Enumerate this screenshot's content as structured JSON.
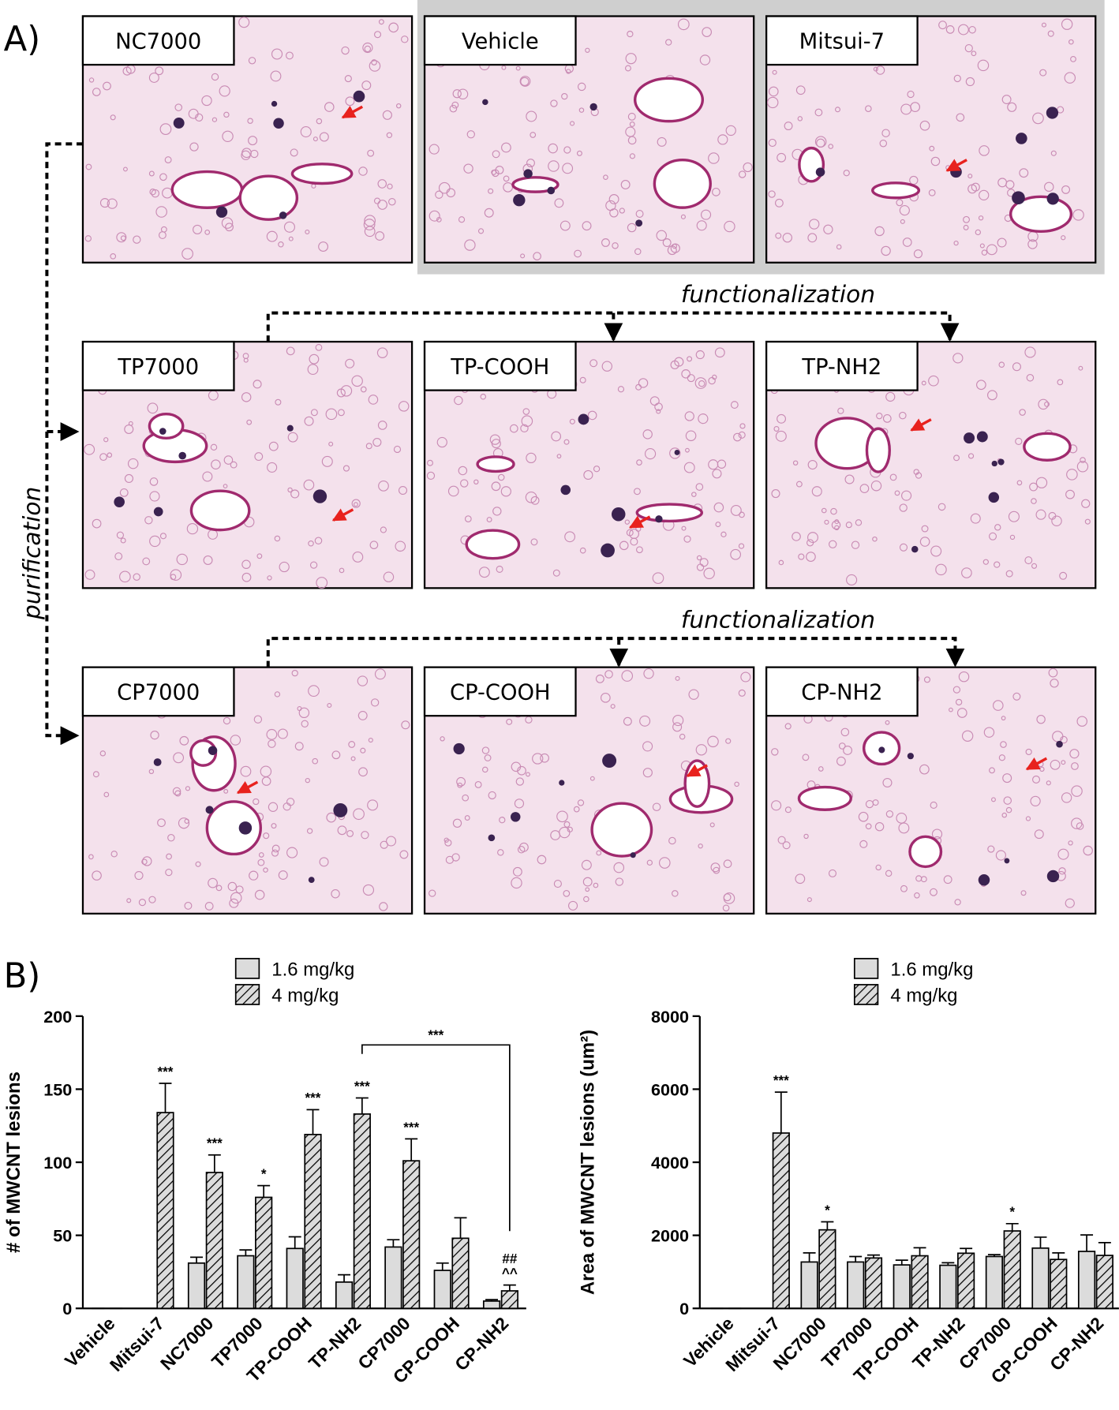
{
  "panel_a": {
    "label": "A)",
    "images": [
      "NC7000",
      "Vehicle",
      "Mitsui-7",
      "TP7000",
      "TP-COOH",
      "TP-NH2",
      "CP7000",
      "CP-COOH",
      "CP-NH2"
    ],
    "functionalization_labels": [
      "functionalization",
      "functionalization"
    ],
    "purification_label": "purification"
  },
  "panel_b_label": "B)",
  "chart_data": [
    {
      "type": "bar",
      "ylabel": "# of MWCNT lesions",
      "categories": [
        "Vehicle",
        "Mitsui-7",
        "NC7000",
        "TP7000",
        "TP-COOH",
        "TP-NH2",
        "CP7000",
        "CP-COOH",
        "CP-NH2"
      ],
      "series": [
        {
          "name": "1.6 mg/kg",
          "color": "#dcdcdc",
          "hatch": false,
          "values": [
            0,
            null,
            31,
            36,
            41,
            18,
            42,
            26,
            5
          ],
          "errors": [
            0,
            null,
            4,
            4,
            8,
            5,
            5,
            5,
            1
          ]
        },
        {
          "name": "4 mg/kg",
          "color": "#dcdcdc",
          "hatch": true,
          "values": [
            0,
            134,
            93,
            76,
            119,
            133,
            101,
            48,
            12
          ],
          "errors": [
            0,
            20,
            12,
            8,
            17,
            11,
            15,
            14,
            4
          ]
        }
      ],
      "ylim": [
        0,
        200
      ],
      "yticks": [
        0,
        50,
        100,
        150,
        200
      ],
      "annotations": [
        null,
        [
          "***"
        ],
        [
          "***"
        ],
        [
          "*"
        ],
        [
          "***"
        ],
        [
          "***"
        ],
        [
          "***"
        ],
        null,
        [
          "^^",
          "##"
        ]
      ],
      "bracket": {
        "label": "***",
        "from": 5,
        "to": 8
      }
    },
    {
      "type": "bar",
      "ylabel": "Area of MWCNT lesions (um²)",
      "categories": [
        "Vehicle",
        "Mitsui-7",
        "NC7000",
        "TP7000",
        "TP-COOH",
        "TP-NH2",
        "CP7000",
        "CP-COOH",
        "CP-NH2"
      ],
      "series": [
        {
          "name": "1.6 mg/kg",
          "color": "#dcdcdc",
          "hatch": false,
          "values": [
            0,
            null,
            1270,
            1270,
            1190,
            1180,
            1420,
            1650,
            1560
          ],
          "errors": [
            0,
            null,
            250,
            150,
            130,
            70,
            50,
            300,
            450
          ]
        },
        {
          "name": "4 mg/kg",
          "color": "#dcdcdc",
          "hatch": true,
          "values": [
            0,
            4800,
            2150,
            1380,
            1440,
            1510,
            2120,
            1340,
            1450
          ],
          "errors": [
            0,
            1120,
            220,
            80,
            220,
            130,
            200,
            180,
            350
          ]
        }
      ],
      "ylim": [
        0,
        8000
      ],
      "yticks": [
        0,
        2000,
        4000,
        6000,
        8000
      ],
      "annotations": [
        null,
        [
          "***"
        ],
        [
          "*"
        ],
        null,
        null,
        null,
        [
          "*"
        ],
        null,
        null
      ]
    }
  ]
}
